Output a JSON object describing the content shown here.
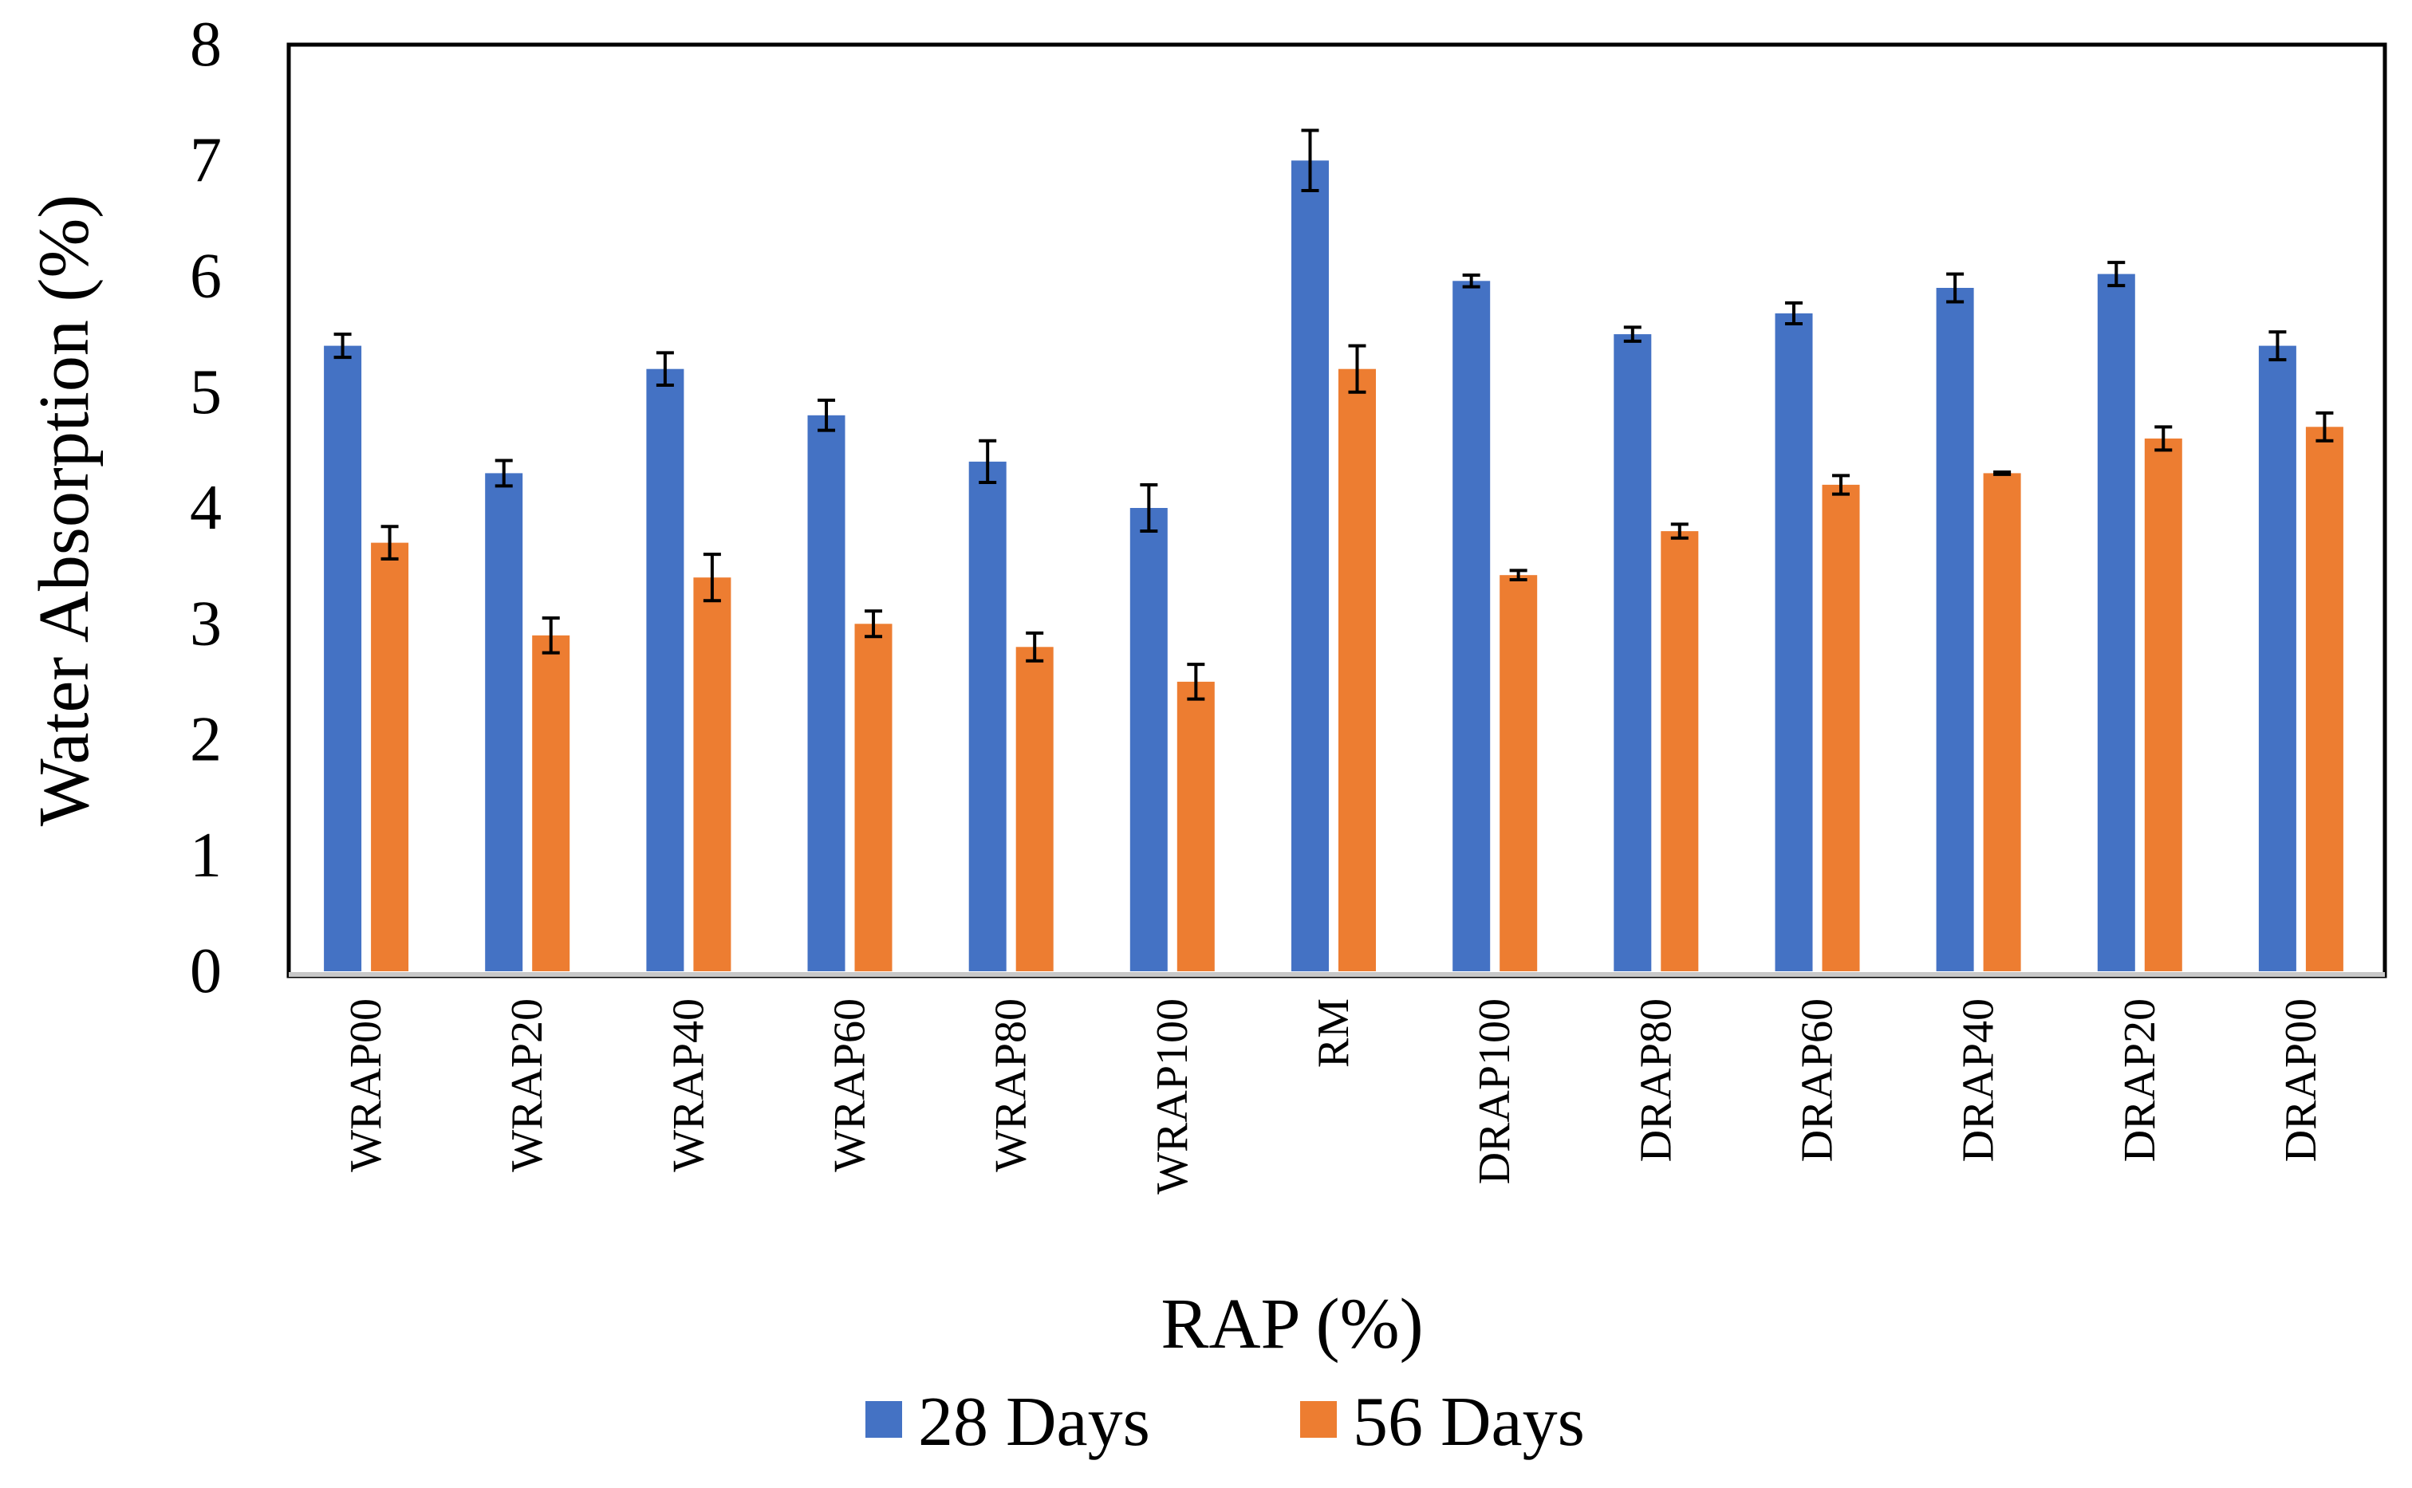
{
  "chart_data": {
    "type": "bar",
    "title": "",
    "xlabel": "RAP (%)",
    "ylabel": "Water Absorption (%)",
    "ylim": [
      0,
      8
    ],
    "yticks": [
      0,
      1,
      2,
      3,
      4,
      5,
      6,
      7,
      8
    ],
    "grid": false,
    "legend_position": "bottom",
    "categories": [
      "WRAP00",
      "WRAP20",
      "WRAP40",
      "WRAP60",
      "WRAP80",
      "WRAP100",
      "RM",
      "DRAP100",
      "DRAP80",
      "DRAP60",
      "DRAP40",
      "DRAP20",
      "DRAP00"
    ],
    "series": [
      {
        "name": "28 Days",
        "color": "#4472C4",
        "values": [
          5.4,
          4.3,
          5.2,
          4.8,
          4.4,
          4.0,
          7.0,
          5.96,
          5.5,
          5.68,
          5.9,
          6.02,
          5.4
        ],
        "errors": [
          0.1,
          0.11,
          0.14,
          0.13,
          0.18,
          0.2,
          0.26,
          0.05,
          0.06,
          0.09,
          0.12,
          0.1,
          0.12
        ]
      },
      {
        "name": "56 Days",
        "color": "#ED7D31",
        "values": [
          3.7,
          2.9,
          3.4,
          3.0,
          2.8,
          2.5,
          5.2,
          3.42,
          3.8,
          4.2,
          4.3,
          4.6,
          4.7
        ],
        "errors": [
          0.14,
          0.15,
          0.2,
          0.11,
          0.12,
          0.15,
          0.2,
          0.04,
          0.06,
          0.08,
          0.01,
          0.1,
          0.12
        ]
      }
    ]
  }
}
